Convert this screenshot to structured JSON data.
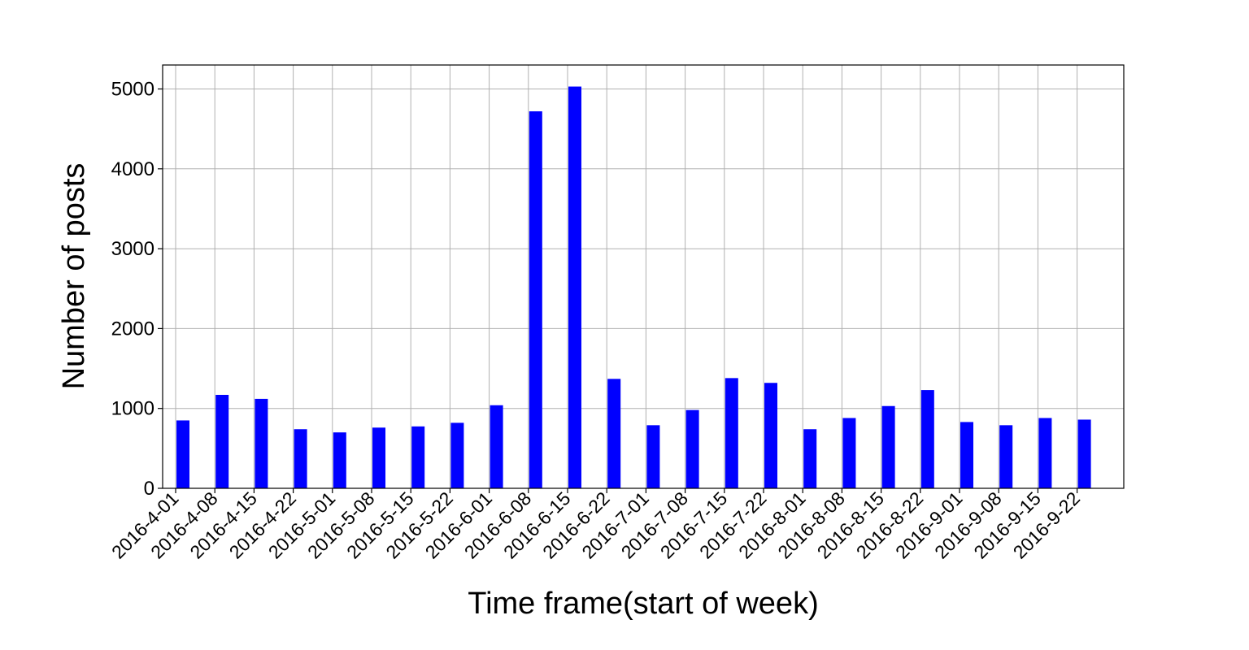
{
  "chart_data": {
    "type": "bar",
    "title": "",
    "xlabel": "Time frame(start of week)",
    "ylabel": "Number of posts",
    "ylim": [
      0,
      5300
    ],
    "yticks": [
      0,
      1000,
      2000,
      3000,
      4000,
      5000
    ],
    "grid": true,
    "bar_color": "#0000ff",
    "categories": [
      "2016-4-01",
      "2016-4-08",
      "2016-4-15",
      "2016-4-22",
      "2016-5-01",
      "2016-5-08",
      "2016-5-15",
      "2016-5-22",
      "2016-6-01",
      "2016-6-08",
      "2016-6-15",
      "2016-6-22",
      "2016-7-01",
      "2016-7-08",
      "2016-7-15",
      "2016-7-22",
      "2016-8-01",
      "2016-8-08",
      "2016-8-15",
      "2016-8-22",
      "2016-9-01",
      "2016-9-08",
      "2016-9-15",
      "2016-9-22"
    ],
    "values": [
      850,
      1170,
      1120,
      740,
      700,
      760,
      775,
      820,
      1040,
      4720,
      5030,
      1370,
      790,
      980,
      1380,
      1320,
      740,
      880,
      1030,
      1230,
      830,
      790,
      880,
      860
    ]
  }
}
